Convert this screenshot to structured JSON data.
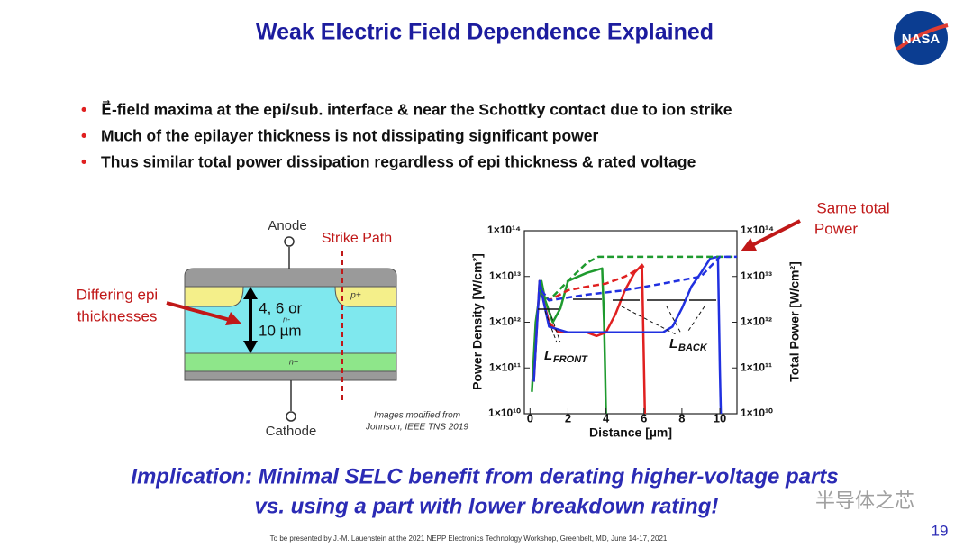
{
  "header": {
    "title": "Weak Electric Field Dependence Explained",
    "logo": "NASA"
  },
  "bullets": [
    "E⃗-field maxima at the epi/sub. interface & near the Schottky contact due to ion strike",
    "Much of the epilayer thickness is not dissipating significant power",
    "Thus similar total power dissipation regardless of epi thickness & rated voltage"
  ],
  "diagram": {
    "anode": "Anode",
    "strike_path": "Strike Path",
    "p_plus": "p+",
    "n_minus": "n-",
    "n_plus": "n+",
    "thickness": [
      "4, 6 or",
      "10 µm"
    ],
    "cathode": "Cathode",
    "callout": [
      "Differing epi",
      "thicknesses"
    ],
    "credit": [
      "Images modified from",
      "Johnson, IEEE TNS 2019"
    ]
  },
  "chart_data": {
    "type": "line",
    "xlabel": "Distance [µm]",
    "ylabel": "Power Density [W/cm²]",
    "y2label": "Total Power [W/cm²]",
    "xlim": [
      -0.3,
      10.9
    ],
    "xticks": [
      0,
      2,
      4,
      6,
      8,
      10
    ],
    "ylog": true,
    "ylim": [
      10000000000.0,
      100000000000000.0
    ],
    "yticks": [
      {
        "value": 10000000000.0,
        "label": "1×10¹⁰"
      },
      {
        "value": 100000000000.0,
        "label": "1×10¹¹"
      },
      {
        "value": 1000000000000.0,
        "label": "1×10¹²"
      },
      {
        "value": 10000000000000.0,
        "label": "1×10¹³"
      },
      {
        "value": 100000000000000.0,
        "label": "1×10¹⁴"
      }
    ],
    "y2log": true,
    "y2lim": [
      10000000000.0,
      100000000000000.0
    ],
    "y2ticks": [
      {
        "value": 10000000000.0,
        "label": "1×10¹⁰"
      },
      {
        "value": 100000000000.0,
        "label": "1×10¹¹"
      },
      {
        "value": 1000000000000.0,
        "label": "1×10¹²"
      },
      {
        "value": 10000000000000.0,
        "label": "1×10¹³"
      },
      {
        "value": 100000000000000.0,
        "label": "1×10¹⁴"
      }
    ],
    "series": [
      {
        "color": "#1e9a2e",
        "dashed": false,
        "x": [
          0.1,
          0.3,
          0.6,
          0.8,
          1.2,
          1.6,
          2.0,
          3.0,
          3.8,
          3.9,
          3.95,
          4.0
        ],
        "values": [
          30000000000.0,
          1000000000000.0,
          8000000000000.0,
          3000000000000.0,
          1000000000000.0,
          2000000000000.0,
          8000000000000.0,
          12000000000000.0,
          15000000000000.0,
          1000000000000.0,
          100000000000.0,
          10000000000.0
        ]
      },
      {
        "color": "#e02020",
        "dashed": false,
        "x": [
          0.2,
          0.5,
          0.7,
          1,
          1.5,
          2,
          3,
          3.5,
          4,
          4.5,
          5,
          5.5,
          5.9,
          6.0,
          6.05
        ],
        "values": [
          50000000000.0,
          8000000000000.0,
          3000000000000.0,
          1000000000000.0,
          600000000000.0,
          600000000000.0,
          600000000000.0,
          500000000000.0,
          600000000000.0,
          1500000000000.0,
          5000000000000.0,
          12000000000000.0,
          18000000000000.0,
          100000000000.0,
          10000000000.0
        ]
      },
      {
        "color": "#2030e0",
        "dashed": false,
        "x": [
          0.2,
          0.5,
          0.7,
          1,
          2,
          3,
          4,
          5,
          6,
          7,
          7.5,
          8,
          8.5,
          9,
          9.5,
          9.9,
          10.0,
          10.05
        ],
        "values": [
          50000000000.0,
          8000000000000.0,
          3000000000000.0,
          800000000000.0,
          600000000000.0,
          600000000000.0,
          600000000000.0,
          600000000000.0,
          600000000000.0,
          600000000000.0,
          800000000000.0,
          2000000000000.0,
          6000000000000.0,
          12000000000000.0,
          25000000000000.0,
          27000000000000.0,
          100000000000.0,
          10000000000.0
        ]
      },
      {
        "color": "#1e9a2e",
        "dashed": true,
        "axis": "y2",
        "x": [
          0.5,
          1,
          2,
          3,
          3.6,
          4,
          10.9
        ],
        "values": [
          5000000000000.0,
          3000000000000.0,
          8000000000000.0,
          20000000000000.0,
          27000000000000.0,
          27000000000000.0,
          27000000000000.0
        ]
      },
      {
        "color": "#e02020",
        "dashed": true,
        "axis": "y2",
        "x": [
          0.6,
          1,
          2,
          3,
          4,
          5,
          6
        ],
        "values": [
          5000000000000.0,
          3000000000000.0,
          5000000000000.0,
          6000000000000.0,
          7000000000000.0,
          10000000000000.0,
          17000000000000.0
        ]
      },
      {
        "color": "#2030e0",
        "dashed": true,
        "axis": "y2",
        "x": [
          0.6,
          1,
          3,
          5,
          7,
          9,
          10,
          10.9
        ],
        "values": [
          5000000000000.0,
          3000000000000.0,
          4000000000000.0,
          5000000000000.0,
          7000000000000.0,
          10000000000000.0,
          27000000000000.0,
          27000000000000.0
        ]
      }
    ],
    "annotations": [
      {
        "main": "L",
        "sub": "FRONT"
      },
      {
        "main": "L",
        "sub": "BACK"
      }
    ]
  },
  "callout": [
    "Same total",
    "Power"
  ],
  "implication": [
    "Implication: Minimal SELC benefit from derating higher-voltage parts",
    "vs. using a part with lower breakdown rating!"
  ],
  "footer": {
    "note": "To be presented by J.-M. Lauenstein at the 2021 NEPP Electronics Technology Workshop, Greenbelt, MD, June 14-17, 2021",
    "page": "19",
    "watermark": "半导体之芯"
  }
}
